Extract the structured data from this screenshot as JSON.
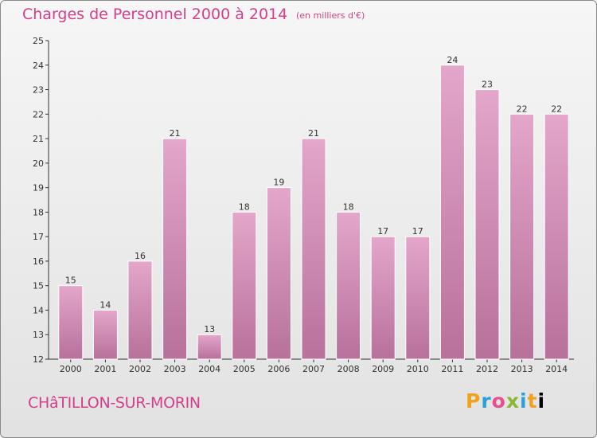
{
  "title": "Charges de Personnel 2000 à 2014",
  "subtitle": "(en milliers d'€)",
  "commune": "CHâTILLON-SUR-MORIN",
  "logo": [
    "P",
    "r",
    "o",
    "x",
    "i",
    "t",
    "i"
  ],
  "colors": {
    "accent": "#d43e8b",
    "bar_top": "#e4a6cb",
    "bar_bottom": "#b7719b"
  },
  "chart_data": {
    "type": "bar",
    "categories": [
      "2000",
      "2001",
      "2002",
      "2003",
      "2004",
      "2005",
      "2006",
      "2007",
      "2008",
      "2009",
      "2010",
      "2011",
      "2012",
      "2013",
      "2014"
    ],
    "values": [
      15,
      14,
      16,
      21,
      13,
      18,
      19,
      21,
      18,
      17,
      17,
      24,
      23,
      22,
      22
    ],
    "title": "Charges de Personnel 2000 à 2014",
    "ylim": [
      12,
      25
    ],
    "yticks": [
      12,
      13,
      14,
      15,
      16,
      17,
      18,
      19,
      20,
      21,
      22,
      23,
      24,
      25
    ],
    "grid": false
  }
}
